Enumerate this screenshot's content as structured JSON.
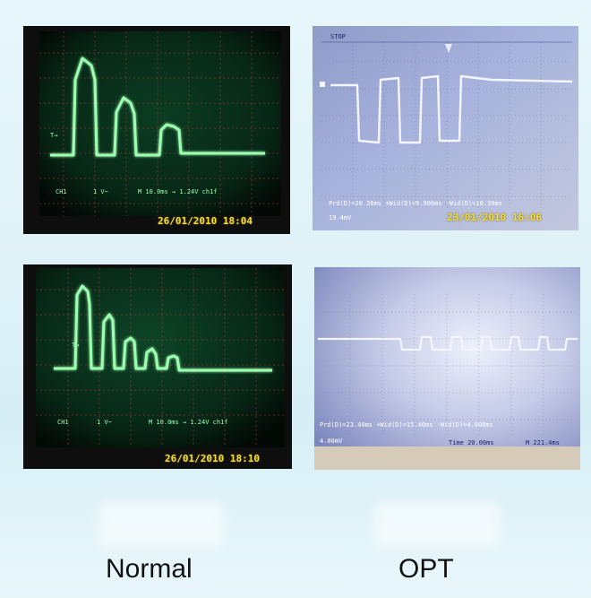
{
  "panels": {
    "normal_top": {
      "timestamp": "26/01/2010 18:04",
      "ch1": "CH1",
      "volts": "1 V~",
      "timebase": "M 10.0ms  →  1.24V ch1f"
    },
    "opt_top": {
      "stop": "STOP",
      "readout": "Prd(D)=20.20ms   +Wid(D)=9.900ms   -Wid(D)=10.30ms",
      "scale": "19.4mV",
      "timestamp": "23/01/2010 16:06"
    },
    "normal_bottom": {
      "timestamp": "26/01/2010 18:10",
      "ch1": "CH1",
      "volts": "1 V~",
      "timebase": "M 10.0ms  →  1.24V ch1f"
    },
    "opt_bottom": {
      "readout": "Prd(D)=23.40ms   +Wid(D)=15.40ms   -Wid(D)=4.000ms",
      "scale": "4.00mV",
      "timebase": "Time 20.00ms",
      "extra": "M 221.4ms"
    }
  },
  "labels": {
    "normal": "Normal",
    "opt": "OPT"
  },
  "colors": {
    "trace_green": "#9dffb0",
    "grid_red": "#b23a3a",
    "trace_white": "#f4f6ff",
    "stamp_yellow": "#f3dd3c"
  }
}
